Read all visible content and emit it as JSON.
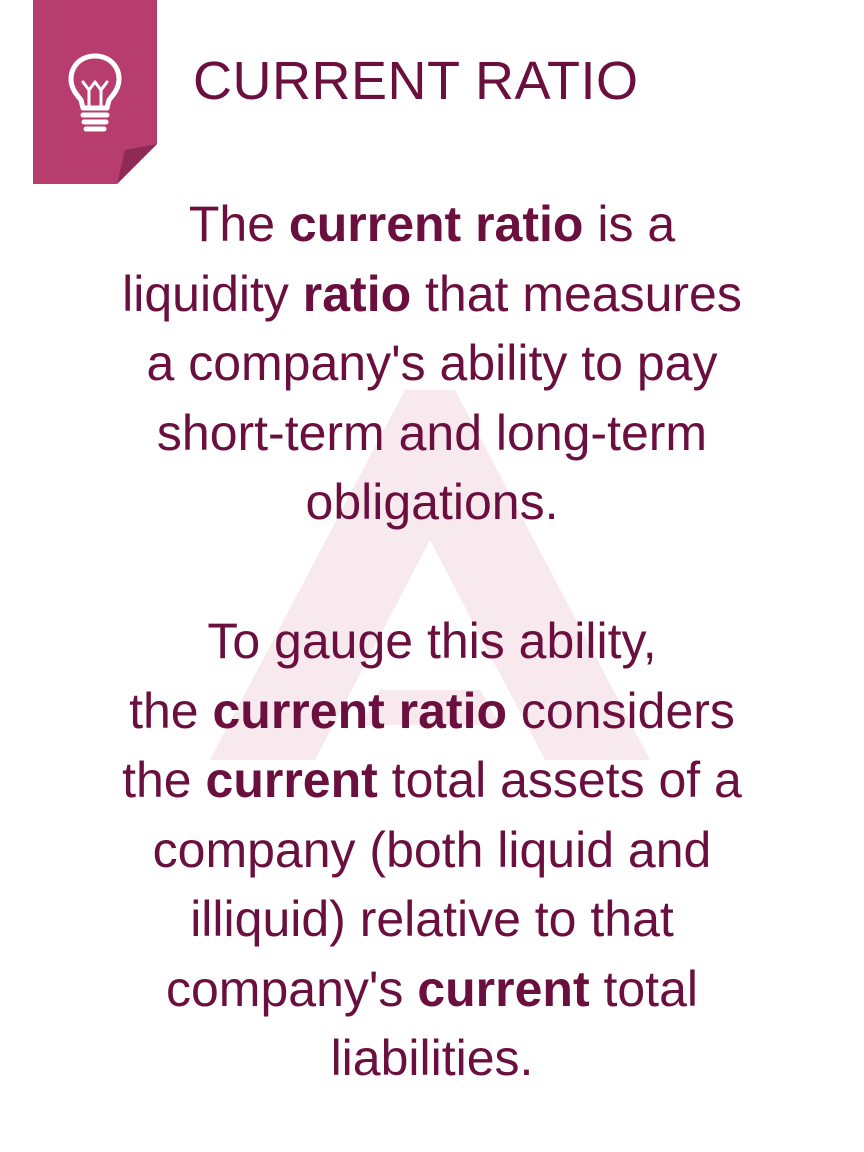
{
  "header": {
    "title": "CURRENT RATIO",
    "tag_color": "#b83d6f",
    "tag_fold_color": "#8f2a55",
    "icon": "lightbulb-icon"
  },
  "colors": {
    "text": "#6b0f3e",
    "watermark": "#f7e9ee",
    "background": "#ffffff"
  },
  "paragraph1": {
    "l1_a": "The ",
    "l1_b": "current ratio",
    "l1_c": " is a",
    "l2_a": "liquidity ",
    "l2_b": "ratio",
    "l2_c": " that measures",
    "l3": "a company's ability to pay",
    "l4": "short-term and long-term",
    "l5": "obligations."
  },
  "paragraph2": {
    "l1": "To gauge this ability,",
    "l2_a": "the ",
    "l2_b": "current ratio",
    "l2_c": " considers",
    "l3_a": "the ",
    "l3_b": "current",
    "l3_c": " total assets of a",
    "l4": "company (both liquid and",
    "l5": "illiquid) relative to that",
    "l6_a": "company's ",
    "l6_b": "current",
    "l6_c": " total",
    "l7": "liabilities."
  }
}
